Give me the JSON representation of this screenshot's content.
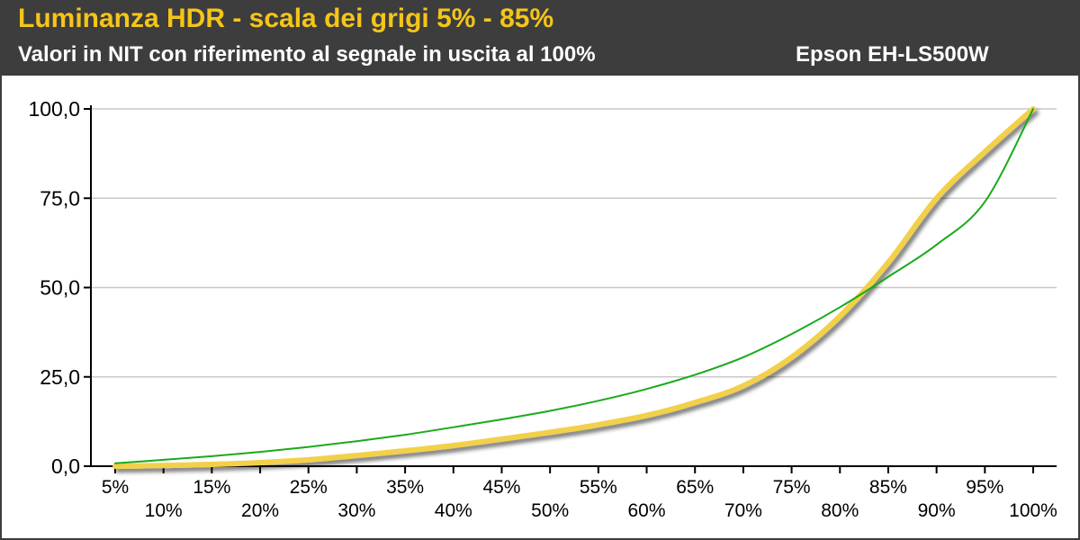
{
  "header": {
    "title": "Luminanza HDR - scala dei grigi 5% - 85%",
    "subtitle": "Valori in NIT con riferimento al segnale in uscita al 100%",
    "model": "Epson EH-LS500W"
  },
  "colors": {
    "header_bg": "#3d3d3d",
    "title": "#f5c518",
    "measured": "#f2d04a",
    "reference": "#1aaa1a",
    "grid": "#c8c8c8"
  },
  "chart_data": {
    "type": "line",
    "xlabel": "",
    "ylabel": "",
    "x_categories": [
      "5%",
      "10%",
      "15%",
      "20%",
      "25%",
      "30%",
      "35%",
      "40%",
      "45%",
      "50%",
      "55%",
      "60%",
      "65%",
      "70%",
      "75%",
      "80%",
      "85%",
      "90%",
      "95%",
      "100%"
    ],
    "ylim": [
      0,
      100
    ],
    "y_ticks": [
      "0,0",
      "25,0",
      "50,0",
      "75,0",
      "100,0"
    ],
    "y_tick_values": [
      0,
      25,
      50,
      75,
      100
    ],
    "grid": true,
    "legend": "none",
    "series": [
      {
        "id": "measured",
        "color": "#f2d04a",
        "x": [
          5,
          10,
          15,
          20,
          25,
          30,
          35,
          40,
          45,
          50,
          55,
          60,
          65,
          70,
          75,
          80,
          85,
          90,
          95,
          100
        ],
        "values": [
          0,
          0.2,
          0.5,
          1.0,
          1.8,
          3.0,
          4.3,
          5.8,
          7.6,
          9.5,
          11.6,
          14.2,
          17.8,
          22.5,
          30.5,
          42.0,
          57.0,
          75.0,
          88.0,
          100.0
        ]
      },
      {
        "id": "reference",
        "color": "#1aaa1a",
        "x": [
          5,
          10,
          15,
          20,
          25,
          30,
          35,
          40,
          45,
          50,
          55,
          60,
          65,
          70,
          75,
          80,
          85,
          90,
          95,
          100
        ],
        "values": [
          0.8,
          1.8,
          2.8,
          4.0,
          5.4,
          7.0,
          8.8,
          10.9,
          13.1,
          15.5,
          18.3,
          21.6,
          25.6,
          30.5,
          37.0,
          44.5,
          53.0,
          62.0,
          74.0,
          100.0
        ]
      }
    ]
  }
}
